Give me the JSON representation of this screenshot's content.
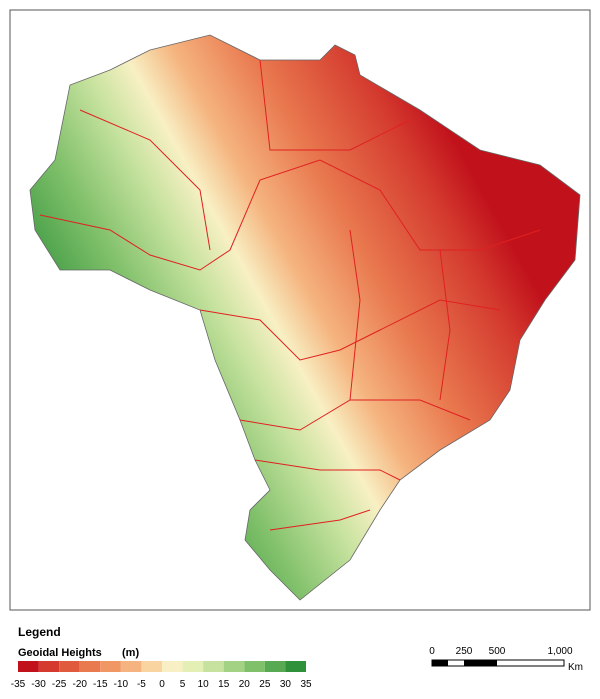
{
  "legend": {
    "heading": "Legend",
    "title": "Geoidal Heights",
    "unit": "(m)",
    "ticks": [
      -35,
      -30,
      -25,
      -20,
      -15,
      -10,
      -5,
      0,
      5,
      10,
      15,
      20,
      25,
      30,
      35
    ],
    "colors": [
      "#c1121c",
      "#d43a2e",
      "#e05a3e",
      "#e9794f",
      "#f09764",
      "#f5b47f",
      "#f9d3a0",
      "#f8f0c4",
      "#e4efb6",
      "#c6e29e",
      "#a4d284",
      "#80c06a",
      "#57a952",
      "#2f913a"
    ]
  },
  "scale_bar": {
    "labels": [
      "0",
      "250",
      "500",
      "1,000"
    ],
    "unit": "Km"
  }
}
